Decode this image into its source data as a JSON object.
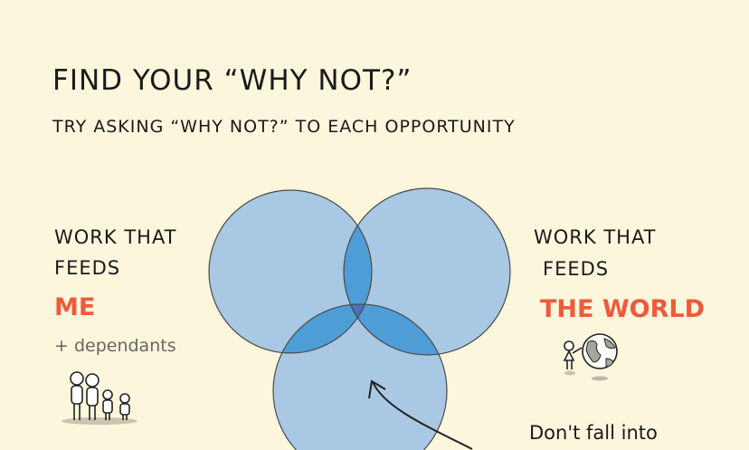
{
  "title": "FIND YOUR “WHY NOT?”",
  "subtitle": "TRY ASKING “WHY NOT?” TO EACH OPPORTUNITY",
  "left": {
    "line1": "WORK THAT",
    "line2": "FEEDS",
    "highlight": "ME",
    "extra": "+ dependants",
    "icon": "family-icon"
  },
  "right": {
    "line1": "WORK THAT",
    "line2": "FEEDS",
    "highlight": "THE WORLD",
    "icon": "person-with-globe-icon"
  },
  "note": "Don't fall into",
  "colors": {
    "background": "#fbf6dc",
    "circle": "#a9c8e3",
    "pair_overlap": "#4f9dd6",
    "center_overlap": "#4a72be",
    "highlight": "#ef5a3c"
  }
}
